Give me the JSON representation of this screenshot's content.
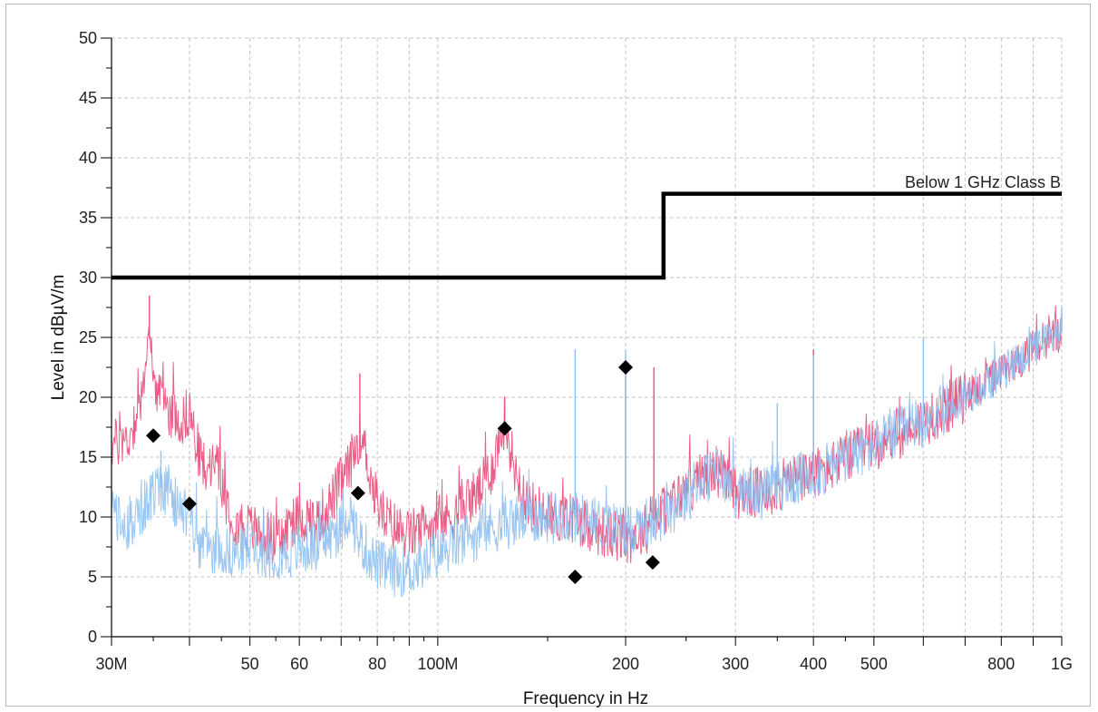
{
  "chart_data": {
    "type": "line",
    "x_scale": "log",
    "xlabel": "Frequency in Hz",
    "ylabel": "Level in dBµV/m",
    "xlim": [
      30000000,
      1000000000
    ],
    "ylim": [
      0,
      50
    ],
    "grid": true,
    "x_ticks": [
      {
        "value": 30000000,
        "label": "30M"
      },
      {
        "value": 50000000,
        "label": "50"
      },
      {
        "value": 60000000,
        "label": "60"
      },
      {
        "value": 80000000,
        "label": "80"
      },
      {
        "value": 100000000,
        "label": "100M"
      },
      {
        "value": 200000000,
        "label": "200"
      },
      {
        "value": 300000000,
        "label": "300"
      },
      {
        "value": 400000000,
        "label": "400"
      },
      {
        "value": 500000000,
        "label": "500"
      },
      {
        "value": 800000000,
        "label": "800"
      },
      {
        "value": 1000000000,
        "label": "1G"
      }
    ],
    "x_minor_grid": [
      40000000,
      70000000,
      90000000,
      600000000,
      700000000,
      900000000
    ],
    "y_ticks": [
      0,
      5,
      10,
      15,
      20,
      25,
      30,
      35,
      40,
      45,
      50
    ],
    "limit_line": {
      "name": "Below 1 GHz Class B",
      "color": "#000000",
      "points": [
        [
          30000000,
          30
        ],
        [
          230000000,
          30
        ],
        [
          230000000,
          37
        ],
        [
          1000000000,
          37
        ]
      ]
    },
    "series": [
      {
        "color": "#e8557f",
        "style": "noise-trace",
        "envelope": [
          [
            30000000,
            16
          ],
          [
            32000000,
            16.5
          ],
          [
            33500000,
            20
          ],
          [
            34500000,
            25
          ],
          [
            35500000,
            20
          ],
          [
            37000000,
            19
          ],
          [
            39000000,
            18
          ],
          [
            40000000,
            19
          ],
          [
            41000000,
            16
          ],
          [
            43000000,
            13
          ],
          [
            44000000,
            16
          ],
          [
            45500000,
            12
          ],
          [
            47000000,
            10
          ],
          [
            50000000,
            9
          ],
          [
            53000000,
            8.5
          ],
          [
            56000000,
            8
          ],
          [
            58000000,
            9.5
          ],
          [
            61000000,
            10
          ],
          [
            64000000,
            9.5
          ],
          [
            67000000,
            11
          ],
          [
            70000000,
            13
          ],
          [
            72000000,
            14
          ],
          [
            75000000,
            17
          ],
          [
            77000000,
            15
          ],
          [
            79000000,
            12
          ],
          [
            82000000,
            10
          ],
          [
            86000000,
            9
          ],
          [
            90000000,
            8.5
          ],
          [
            95000000,
            9
          ],
          [
            100000000,
            9.5
          ],
          [
            105000000,
            10
          ],
          [
            110000000,
            11
          ],
          [
            116000000,
            12
          ],
          [
            122000000,
            14
          ],
          [
            128000000,
            18
          ],
          [
            133000000,
            14
          ],
          [
            140000000,
            11
          ],
          [
            150000000,
            10
          ],
          [
            165000000,
            10
          ],
          [
            180000000,
            9
          ],
          [
            200000000,
            8
          ],
          [
            215000000,
            9
          ],
          [
            230000000,
            10.5
          ],
          [
            260000000,
            13
          ],
          [
            280000000,
            14
          ],
          [
            300000000,
            12
          ],
          [
            330000000,
            12
          ],
          [
            370000000,
            13
          ],
          [
            420000000,
            14
          ],
          [
            500000000,
            16
          ],
          [
            600000000,
            18
          ],
          [
            700000000,
            20
          ],
          [
            800000000,
            22
          ],
          [
            900000000,
            24
          ],
          [
            1000000000,
            25.5
          ]
        ],
        "spikes": [
          [
            34500000,
            28.5
          ],
          [
            75000000,
            22
          ],
          [
            128000000,
            20
          ],
          [
            200000000,
            23
          ],
          [
            222000000,
            22.5
          ],
          [
            400000000,
            24
          ],
          [
            1000000000,
            27
          ]
        ]
      },
      {
        "color": "#8fc0f0",
        "style": "noise-trace",
        "envelope": [
          [
            30000000,
            10.5
          ],
          [
            32000000,
            9
          ],
          [
            34000000,
            11
          ],
          [
            36000000,
            12.5
          ],
          [
            38000000,
            11
          ],
          [
            40000000,
            10
          ],
          [
            42000000,
            7
          ],
          [
            44000000,
            7.5
          ],
          [
            47000000,
            7
          ],
          [
            50000000,
            7.5
          ],
          [
            54000000,
            7
          ],
          [
            58000000,
            7
          ],
          [
            62000000,
            7.5
          ],
          [
            66000000,
            8
          ],
          [
            70000000,
            9
          ],
          [
            72000000,
            10.5
          ],
          [
            75000000,
            8
          ],
          [
            80000000,
            6
          ],
          [
            85000000,
            5.5
          ],
          [
            90000000,
            5.5
          ],
          [
            95000000,
            6
          ],
          [
            100000000,
            7
          ],
          [
            110000000,
            8
          ],
          [
            120000000,
            9
          ],
          [
            130000000,
            9.5
          ],
          [
            140000000,
            10
          ],
          [
            150000000,
            10
          ],
          [
            165000000,
            10
          ],
          [
            180000000,
            9.5
          ],
          [
            200000000,
            9
          ],
          [
            215000000,
            9.5
          ],
          [
            230000000,
            10
          ],
          [
            260000000,
            12.5
          ],
          [
            280000000,
            14
          ],
          [
            300000000,
            12
          ],
          [
            330000000,
            12
          ],
          [
            370000000,
            13
          ],
          [
            420000000,
            14
          ],
          [
            500000000,
            16
          ],
          [
            600000000,
            18
          ],
          [
            700000000,
            20
          ],
          [
            800000000,
            22
          ],
          [
            900000000,
            24
          ],
          [
            1000000000,
            25.5
          ]
        ],
        "spikes": [
          [
            36000000,
            15.5
          ],
          [
            166000000,
            24
          ],
          [
            200000000,
            24
          ],
          [
            350000000,
            19.5
          ],
          [
            400000000,
            23.5
          ],
          [
            600000000,
            25
          ],
          [
            1000000000,
            27.5
          ]
        ]
      }
    ],
    "markers": {
      "shape": "diamond",
      "color": "#000000",
      "points": [
        [
          35000000,
          16.8
        ],
        [
          40000000,
          11.1
        ],
        [
          74500000,
          12.0
        ],
        [
          128000000,
          17.4
        ],
        [
          166000000,
          5.0
        ],
        [
          200000000,
          22.5
        ],
        [
          221000000,
          6.2
        ]
      ]
    }
  }
}
